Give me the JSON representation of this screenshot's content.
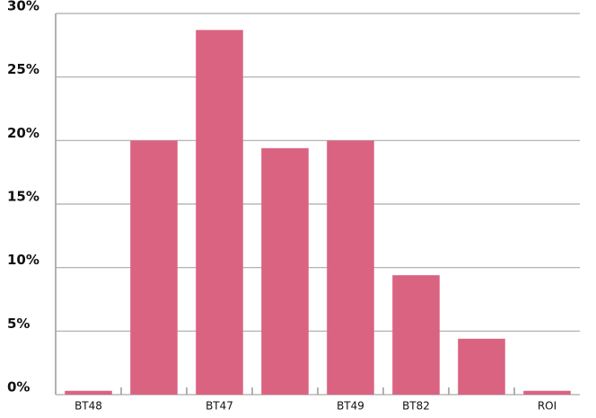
{
  "chart_data": {
    "type": "bar",
    "categories": [
      "BT48",
      null,
      "BT47",
      null,
      "BT49",
      "BT82",
      null,
      "ROI"
    ],
    "values": [
      0.3,
      20,
      28.7,
      19.4,
      20,
      9.4,
      4.4,
      0.3
    ],
    "color": "#da6381",
    "ylim": [
      0,
      30
    ],
    "yticks": [
      {
        "value": 0,
        "label": "0%"
      },
      {
        "value": 5,
        "label": "5%"
      },
      {
        "value": 10,
        "label": "10%"
      },
      {
        "value": 15,
        "label": "15%"
      },
      {
        "value": 20,
        "label": "20%"
      },
      {
        "value": 25,
        "label": "25%"
      },
      {
        "value": 30,
        "label": "30%"
      }
    ],
    "grid": true
  }
}
